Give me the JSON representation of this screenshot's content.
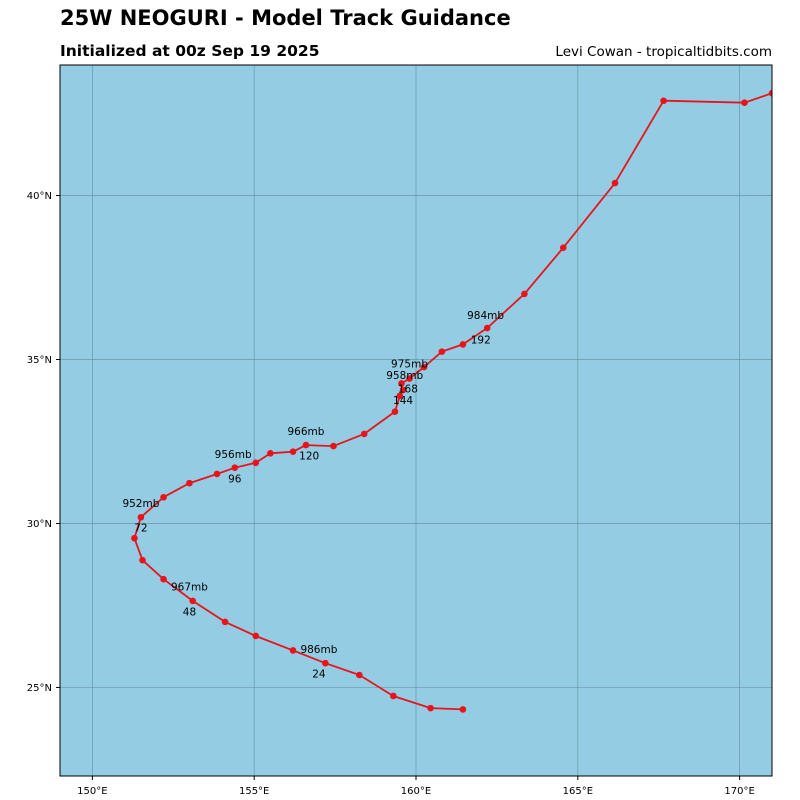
{
  "header": {
    "title": "25W NEOGURI - Model Track Guidance",
    "subtitle": "Initialized at 00z Sep 19 2025",
    "credit": "Levi Cowan - tropicaltidbits.com"
  },
  "colors": {
    "ocean": "#94cde3",
    "track": "#e8141c",
    "grid": "#5f8a99"
  },
  "map": {
    "lon_range": [
      149,
      171
    ],
    "lat_range": [
      22.3,
      43.98
    ],
    "lon_ticks": [
      {
        "value": 150,
        "label": "150°E"
      },
      {
        "value": 155,
        "label": "155°E"
      },
      {
        "value": 160,
        "label": "160°E"
      },
      {
        "value": 165,
        "label": "165°E"
      },
      {
        "value": 170,
        "label": "170°E"
      }
    ],
    "lat_ticks": [
      {
        "value": 25,
        "label": "25°N"
      },
      {
        "value": 30,
        "label": "30°N"
      },
      {
        "value": 35,
        "label": "35°N"
      },
      {
        "value": 40,
        "label": "40°N"
      }
    ],
    "grid": true
  },
  "track": [
    {
      "lon": 161.45,
      "lat": 24.33
    },
    {
      "lon": 160.45,
      "lat": 24.37
    },
    {
      "lon": 159.3,
      "lat": 24.74
    },
    {
      "lon": 158.25,
      "lat": 25.38
    },
    {
      "lon": 157.2,
      "lat": 25.74
    },
    {
      "lon": 156.2,
      "lat": 26.13
    },
    {
      "lon": 155.05,
      "lat": 26.57
    },
    {
      "lon": 154.1,
      "lat": 27.0
    },
    {
      "lon": 153.1,
      "lat": 27.64
    },
    {
      "lon": 152.2,
      "lat": 28.3
    },
    {
      "lon": 151.55,
      "lat": 28.88
    },
    {
      "lon": 151.3,
      "lat": 29.55
    },
    {
      "lon": 151.5,
      "lat": 30.19
    },
    {
      "lon": 152.2,
      "lat": 30.8
    },
    {
      "lon": 153.0,
      "lat": 31.23
    },
    {
      "lon": 153.85,
      "lat": 31.51
    },
    {
      "lon": 154.4,
      "lat": 31.7
    },
    {
      "lon": 155.05,
      "lat": 31.85
    },
    {
      "lon": 155.5,
      "lat": 32.14
    },
    {
      "lon": 156.2,
      "lat": 32.19
    },
    {
      "lon": 156.6,
      "lat": 32.39
    },
    {
      "lon": 157.45,
      "lat": 32.36
    },
    {
      "lon": 158.4,
      "lat": 32.73
    },
    {
      "lon": 159.35,
      "lat": 33.41
    },
    {
      "lon": 159.5,
      "lat": 33.89
    },
    {
      "lon": 159.6,
      "lat": 34.07
    },
    {
      "lon": 159.55,
      "lat": 34.27
    },
    {
      "lon": 159.8,
      "lat": 34.42
    },
    {
      "lon": 160.25,
      "lat": 34.77
    },
    {
      "lon": 160.8,
      "lat": 35.24
    },
    {
      "lon": 161.45,
      "lat": 35.46
    },
    {
      "lon": 162.2,
      "lat": 35.96
    },
    {
      "lon": 163.35,
      "lat": 37.0
    },
    {
      "lon": 164.55,
      "lat": 38.41
    },
    {
      "lon": 166.15,
      "lat": 40.38
    },
    {
      "lon": 167.65,
      "lat": 42.89
    },
    {
      "lon": 170.15,
      "lat": 42.83
    },
    {
      "lon": 171.0,
      "lat": 43.12
    }
  ],
  "pressure_labels": [
    {
      "text": "986mb",
      "lon": 157.0,
      "lat": 26.05
    },
    {
      "text": "967mb",
      "lon": 153.0,
      "lat": 27.95
    },
    {
      "text": "952mb",
      "lon": 151.5,
      "lat": 30.5
    },
    {
      "text": "956mb",
      "lon": 154.35,
      "lat": 32.0
    },
    {
      "text": "966mb",
      "lon": 156.6,
      "lat": 32.7
    },
    {
      "text": "958mb",
      "lon": 159.65,
      "lat": 34.4
    },
    {
      "text": "975mb",
      "lon": 159.8,
      "lat": 34.75
    },
    {
      "text": "984mb",
      "lon": 162.15,
      "lat": 36.23
    }
  ],
  "hour_labels": [
    {
      "text": "24",
      "lon": 157.0,
      "lat": 25.3
    },
    {
      "text": "48",
      "lon": 153.0,
      "lat": 27.2
    },
    {
      "text": "72",
      "lon": 151.5,
      "lat": 29.75
    },
    {
      "text": "96",
      "lon": 154.4,
      "lat": 31.25
    },
    {
      "text": "120",
      "lon": 156.7,
      "lat": 31.95
    },
    {
      "text": "144",
      "lon": 159.6,
      "lat": 33.64
    },
    {
      "text": "168",
      "lon": 159.75,
      "lat": 34.0
    },
    {
      "text": "192",
      "lon": 162.0,
      "lat": 35.49
    }
  ]
}
